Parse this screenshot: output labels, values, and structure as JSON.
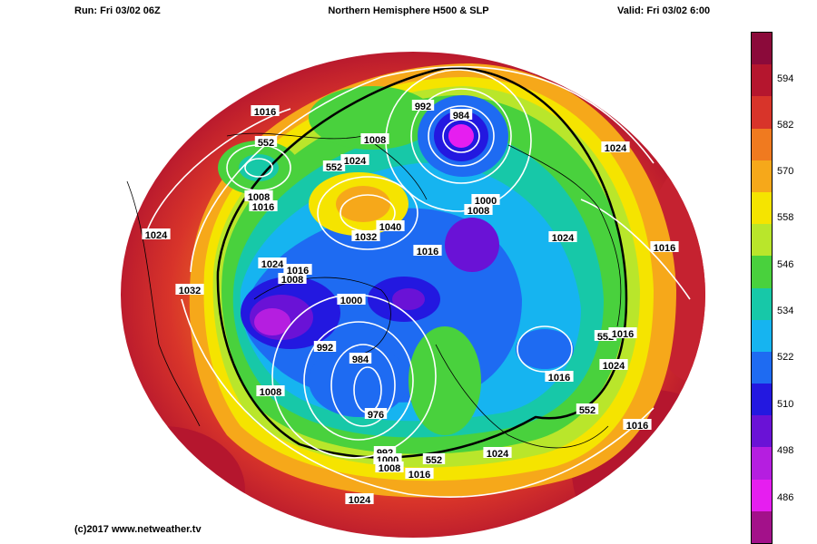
{
  "header": {
    "run": "Run: Fri 03/02 06Z",
    "title": "Northern Hemisphere H500 & SLP",
    "valid": "Valid: Fri 03/02 6:00"
  },
  "copyright": "(c)2017 www.netweather.tv",
  "colorbar": {
    "labels": [
      "594",
      "582",
      "570",
      "558",
      "546",
      "534",
      "522",
      "510",
      "498",
      "486"
    ],
    "colors": [
      "#8b0a3a",
      "#b5162e",
      "#d8342a",
      "#f07a1f",
      "#f6a81a",
      "#f5e400",
      "#b9e62b",
      "#49d13d",
      "#17c8a8",
      "#16b4f0",
      "#1e6bf2",
      "#2318e0",
      "#6a12d6",
      "#b51ee0",
      "#e61ef0",
      "#a3118a"
    ]
  },
  "slp_labels": [
    {
      "text": "1016"
    },
    {
      "text": "552"
    },
    {
      "text": "1008"
    },
    {
      "text": "1016"
    },
    {
      "text": "1008"
    },
    {
      "text": "552"
    },
    {
      "text": "1024"
    },
    {
      "text": "992"
    },
    {
      "text": "984"
    },
    {
      "text": "1024"
    },
    {
      "text": "1040"
    },
    {
      "text": "1032"
    },
    {
      "text": "1000"
    },
    {
      "text": "1008"
    },
    {
      "text": "1024"
    },
    {
      "text": "1016"
    },
    {
      "text": "1024"
    },
    {
      "text": "1016"
    },
    {
      "text": "1032"
    },
    {
      "text": "1024"
    },
    {
      "text": "1016"
    },
    {
      "text": "1008"
    },
    {
      "text": "1000"
    },
    {
      "text": "992"
    },
    {
      "text": "984"
    },
    {
      "text": "1008"
    },
    {
      "text": "976"
    },
    {
      "text": "552"
    },
    {
      "text": "1016"
    },
    {
      "text": "1016"
    },
    {
      "text": "1024"
    },
    {
      "text": "552"
    },
    {
      "text": "1016"
    },
    {
      "text": "992"
    },
    {
      "text": "1000"
    },
    {
      "text": "1008"
    },
    {
      "text": "1016"
    },
    {
      "text": "552"
    },
    {
      "text": "1024"
    },
    {
      "text": "1024"
    }
  ]
}
